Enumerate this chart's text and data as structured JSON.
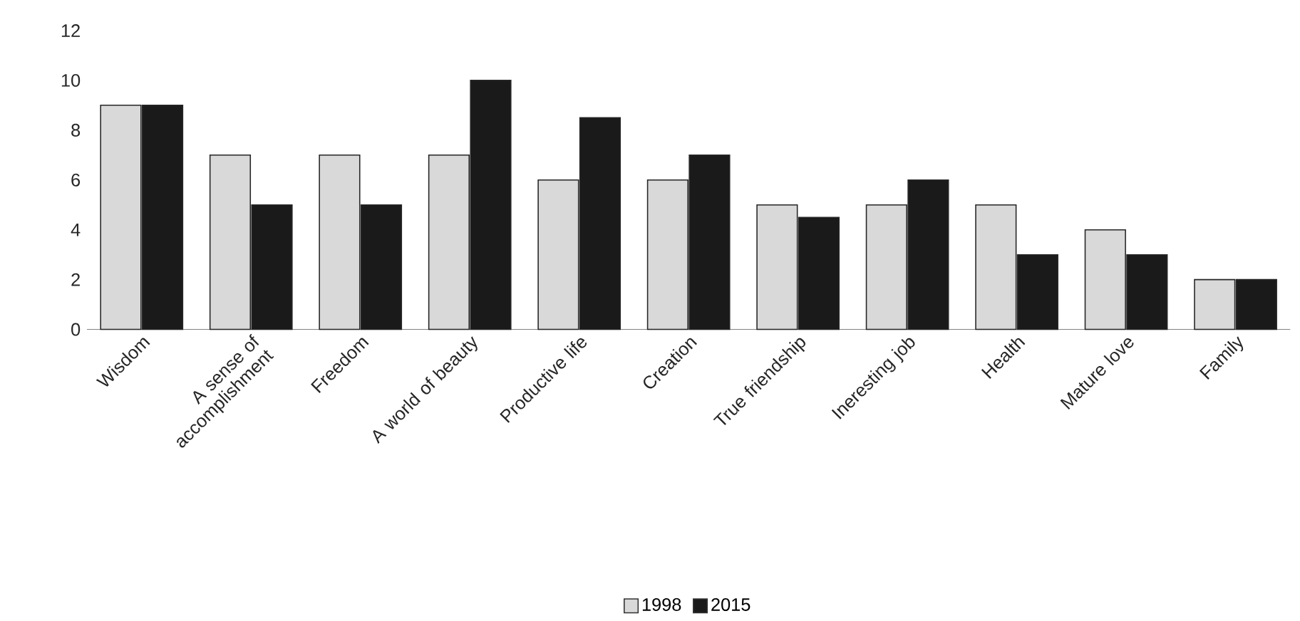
{
  "chart_data": {
    "type": "bar",
    "categories": [
      "Wisdom",
      "A sense of accomplishment",
      "Freedom",
      "A world of beauty",
      "Productive life",
      "Creation",
      "True friendship",
      "Ineresting job",
      "Health",
      "Mature love",
      "Family"
    ],
    "series": [
      {
        "name": "1998",
        "color": "#d9d9d9",
        "values": [
          9,
          7,
          7,
          7,
          6,
          6,
          5,
          5,
          5,
          4,
          2
        ]
      },
      {
        "name": "2015",
        "color": "#1a1a1a",
        "values": [
          9,
          5,
          5,
          10,
          8.5,
          7,
          4.5,
          6,
          3,
          3,
          2
        ]
      }
    ],
    "ylim": [
      0,
      12
    ],
    "yticks": [
      0,
      2,
      4,
      6,
      8,
      10,
      12
    ],
    "legend": "bottom"
  }
}
